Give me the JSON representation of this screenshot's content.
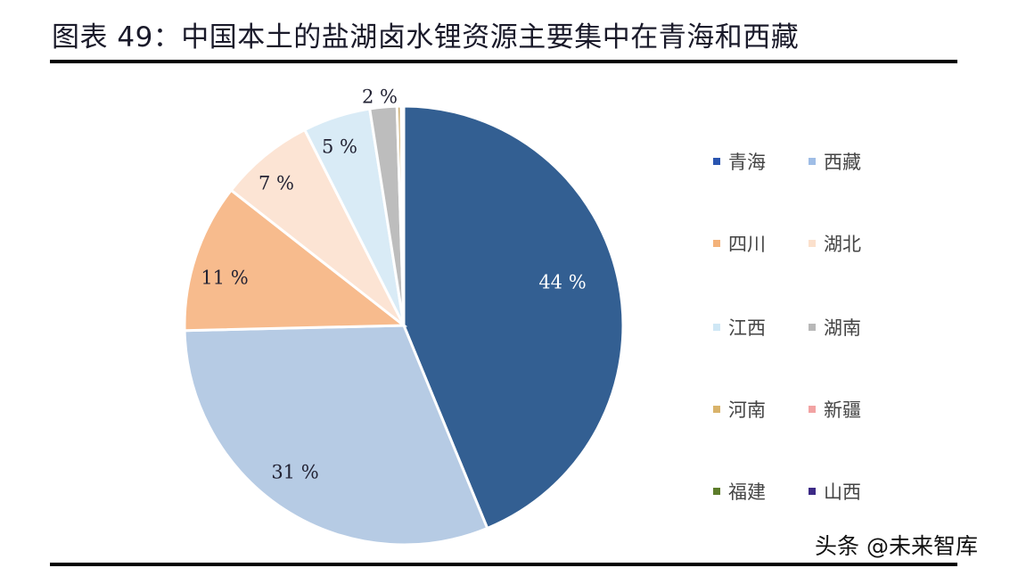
{
  "header": {
    "title": "图表 49：中国本土的盐湖卤水锂资源主要集中在青海和西藏"
  },
  "watermark": "头条 @未来智库",
  "chart_data": {
    "type": "pie",
    "title": "图表 49：中国本土的盐湖卤水锂资源主要集中在青海和西藏",
    "start_angle_deg": 0,
    "direction": "clockwise",
    "legend_position": "right",
    "slices": [
      {
        "name": "青海",
        "value": 44,
        "label": "44 %",
        "color": "#335f92",
        "label_color": "#ffffff"
      },
      {
        "name": "西藏",
        "value": 31,
        "label": "31 %",
        "color": "#b6cbe4",
        "label_color": "#222233"
      },
      {
        "name": "四川",
        "value": 11,
        "label": "11 %",
        "color": "#f7bb8d",
        "label_color": "#222233"
      },
      {
        "name": "湖北",
        "value": 7,
        "label": "7 %",
        "color": "#fce4d4",
        "label_color": "#222233"
      },
      {
        "name": "江西",
        "value": 5,
        "label": "5 %",
        "color": "#d9ebf6",
        "label_color": "#222233"
      },
      {
        "name": "湖南",
        "value": 2,
        "label": "2 %",
        "color": "#bdbdbd",
        "label_color": "#222233"
      },
      {
        "name": "河南",
        "value": 0.3,
        "label": "",
        "color": "#c9a96b",
        "label_color": "#222233"
      },
      {
        "name": "新疆",
        "value": 0.1,
        "label": "",
        "color": "#f2a8a8",
        "label_color": "#222233"
      },
      {
        "name": "福建",
        "value": 0.05,
        "label": "",
        "color": "#5e7d2f",
        "label_color": "#222233"
      },
      {
        "name": "山西",
        "value": 0.05,
        "label": "",
        "color": "#3f2f86",
        "label_color": "#222233"
      }
    ]
  },
  "legend": {
    "items": [
      {
        "label": "青海",
        "color": "#2a55b0"
      },
      {
        "label": "西藏",
        "color": "#9fbde6"
      },
      {
        "label": "四川",
        "color": "#f3b27a"
      },
      {
        "label": "湖北",
        "color": "#fbe0cc"
      },
      {
        "label": "江西",
        "color": "#cfe7f5"
      },
      {
        "label": "湖南",
        "color": "#b8b8b8"
      },
      {
        "label": "河南",
        "color": "#d9b36a"
      },
      {
        "label": "新疆",
        "color": "#f2a3a3"
      },
      {
        "label": "福建",
        "color": "#5c7c2a"
      },
      {
        "label": "山西",
        "color": "#3c2a86"
      }
    ]
  }
}
